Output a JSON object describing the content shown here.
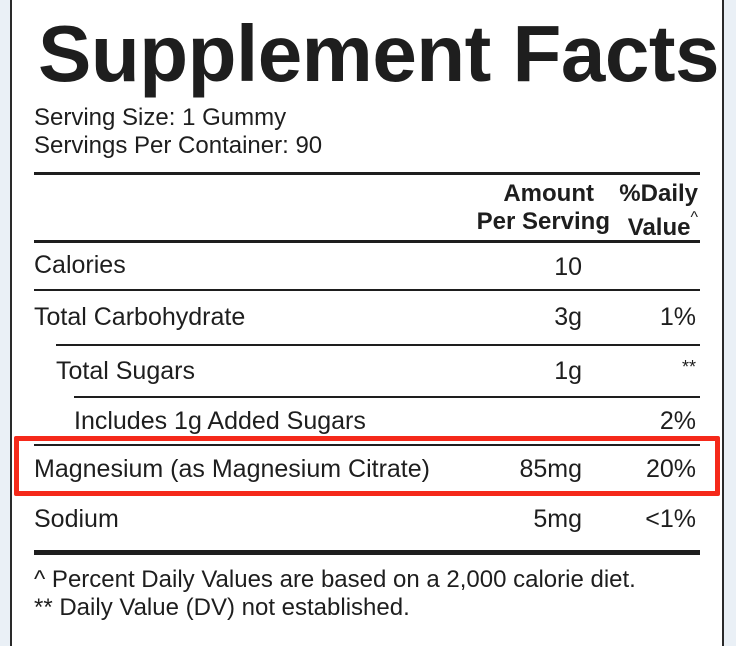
{
  "label": {
    "title": "Supplement Facts",
    "serving_size": "Serving Size: 1 Gummy",
    "servings_per_container": "Servings Per Container: 90",
    "header": {
      "amount_line1": "Amount",
      "amount_line2": "Per Serving",
      "dv_line1": "%Daily",
      "dv_line2": "Value",
      "dv_mark": "^"
    },
    "rows": [
      {
        "name": "Calories",
        "amount": "10",
        "dv": ""
      },
      {
        "name": "Total Carbohydrate",
        "amount": "3g",
        "dv": "1%"
      },
      {
        "name": "Total Sugars",
        "amount": "1g",
        "dv": "**"
      },
      {
        "name": "Includes 1g Added Sugars",
        "amount": "",
        "dv": "2%"
      },
      {
        "name": "Magnesium (as Magnesium Citrate)",
        "amount": "85mg",
        "dv": "20%"
      },
      {
        "name": "Sodium",
        "amount": "5mg",
        "dv": "<1%"
      }
    ],
    "footnote1": "^ Percent Daily Values are based on a 2,000 calorie diet.",
    "footnote2": "** Daily Value (DV) not established.",
    "highlight_color": "#f5291a",
    "highlighted_row": "Magnesium (as Magnesium Citrate)"
  }
}
